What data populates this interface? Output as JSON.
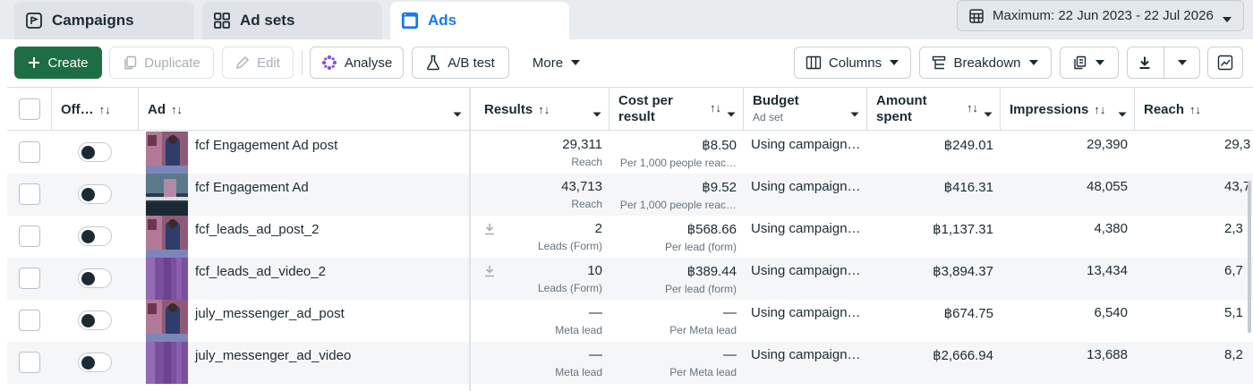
{
  "tabs": [
    {
      "label": "Campaigns",
      "icon": "campaign-flag-icon"
    },
    {
      "label": "Ad sets",
      "icon": "grid-icon"
    },
    {
      "label": "Ads",
      "icon": "ads-window-icon"
    }
  ],
  "date_range": "Maximum: 22 Jun 2023 - 22 Jul 2026",
  "toolbar": {
    "create": "Create",
    "duplicate": "Duplicate",
    "edit": "Edit",
    "analyse": "Analyse",
    "ab_test": "A/B test",
    "more": "More",
    "columns": "Columns",
    "breakdown": "Breakdown"
  },
  "colors": {
    "primary_green": "#1e6e45",
    "active_tab": "#1877f2"
  },
  "columns": {
    "off_on": "Off…",
    "ad": "Ad",
    "results": "Results",
    "cost_per_result_1": "Cost per",
    "cost_per_result_2": "result",
    "budget": "Budget",
    "budget_sub": "Ad set",
    "amount_spent_1": "Amount",
    "amount_spent_2": "spent",
    "impressions": "Impressions",
    "reach": "Reach"
  },
  "rows": [
    {
      "name": "fcf Engagement Ad post",
      "results": "29,311",
      "results_sub": "Reach",
      "cost": "฿8.50",
      "cost_sub": "Per 1,000 people reac…",
      "budget": "Using campaign…",
      "spent": "฿249.01",
      "impressions": "29,390",
      "reach": "29,3",
      "download": false,
      "thumb": "photo"
    },
    {
      "name": "fcf Engagement Ad",
      "results": "43,713",
      "results_sub": "Reach",
      "cost": "฿9.52",
      "cost_sub": "Per 1,000 people reac…",
      "budget": "Using campaign…",
      "spent": "฿416.31",
      "impressions": "48,055",
      "reach": "43,7",
      "download": false,
      "thumb": "dark"
    },
    {
      "name": "fcf_leads_ad_post_2",
      "results": "2",
      "results_sub": "Leads (Form)",
      "cost": "฿568.66",
      "cost_sub": "Per lead (form)",
      "budget": "Using campaign…",
      "spent": "฿1,137.31",
      "impressions": "4,380",
      "reach": "2,3",
      "download": true,
      "thumb": "photo"
    },
    {
      "name": "fcf_leads_ad_video_2",
      "results": "10",
      "results_sub": "Leads (Form)",
      "cost": "฿389.44",
      "cost_sub": "Per lead (form)",
      "budget": "Using campaign…",
      "spent": "฿3,894.37",
      "impressions": "13,434",
      "reach": "6,7",
      "download": true,
      "thumb": "purple"
    },
    {
      "name": "july_messenger_ad_post",
      "results": "—",
      "results_sub": "Meta lead",
      "cost": "—",
      "cost_sub": "Per Meta lead",
      "budget": "Using campaign…",
      "spent": "฿674.75",
      "impressions": "6,540",
      "reach": "5,1",
      "download": false,
      "thumb": "photo"
    },
    {
      "name": "july_messenger_ad_video",
      "results": "—",
      "results_sub": "Meta lead",
      "cost": "—",
      "cost_sub": "Per Meta lead",
      "budget": "Using campaign…",
      "spent": "฿2,666.94",
      "impressions": "13,688",
      "reach": "8,2",
      "download": false,
      "thumb": "purple"
    }
  ]
}
